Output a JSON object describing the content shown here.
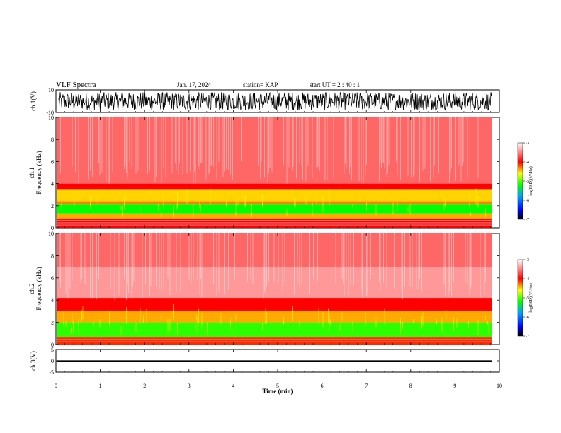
{
  "header": {
    "title": "VLF Spectra",
    "date": "Jan. 17, 2024",
    "station": "station= KAP",
    "start": "start  UT  =   2 : 40 : 1"
  },
  "chart_data": {
    "type": "heatmap",
    "x": {
      "label": "Time  (min)",
      "range": [
        0,
        10
      ],
      "ticks": [
        "0",
        "1",
        "2",
        "3",
        "4",
        "5",
        "6",
        "7",
        "8",
        "9",
        "10"
      ],
      "data_end": 9.83
    },
    "panels": [
      {
        "id": "ch1_waveform",
        "type": "line",
        "ylabel": "ch.1(V)",
        "ylim": [
          -10,
          10
        ],
        "yticks": [
          "10",
          "-10"
        ],
        "amplitude_range": [
          -8,
          8
        ]
      },
      {
        "id": "ch1_spectrogram",
        "type": "heatmap",
        "ylabel_top": "ch.1",
        "ylabel": "Frequency  (kHz)",
        "ylim": [
          0,
          10
        ],
        "yticks": [
          "0",
          "2",
          "4",
          "6",
          "8",
          "10"
        ],
        "bands": [
          {
            "from": 0.0,
            "to": 0.8,
            "level": -4.0
          },
          {
            "from": 0.8,
            "to": 1.3,
            "level": -4.4
          },
          {
            "from": 1.3,
            "to": 2.1,
            "level": -5.2
          },
          {
            "from": 2.1,
            "to": 2.4,
            "level": -4.3
          },
          {
            "from": 2.4,
            "to": 3.5,
            "level": -4.5
          },
          {
            "from": 3.5,
            "to": 4.0,
            "level": -4.0
          },
          {
            "from": 4.0,
            "to": 10.0,
            "level": -3.6
          }
        ]
      },
      {
        "id": "ch2_spectrogram",
        "type": "heatmap",
        "ylabel_top": "ch.2",
        "ylabel": "Frequency  (kHz)",
        "ylim": [
          0,
          10
        ],
        "yticks": [
          "0",
          "2",
          "4",
          "6",
          "8",
          "10"
        ],
        "bands": [
          {
            "from": 0.0,
            "to": 0.7,
            "level": -4.1
          },
          {
            "from": 0.7,
            "to": 2.0,
            "level": -5.1
          },
          {
            "from": 2.0,
            "to": 3.0,
            "level": -4.4
          },
          {
            "from": 3.0,
            "to": 4.2,
            "level": -4.0
          },
          {
            "from": 4.2,
            "to": 7.0,
            "level": -3.4
          },
          {
            "from": 7.0,
            "to": 10.0,
            "level": -3.6
          }
        ]
      },
      {
        "id": "ch3_waveform",
        "type": "line",
        "ylabel": "ch.3(V)",
        "ylim": [
          -5,
          5
        ],
        "yticks": [
          "5",
          "0",
          "-5"
        ],
        "baseline": -0.2,
        "amplitude_range": [
          -0.6,
          0.2
        ]
      }
    ],
    "colorbar": {
      "label": "log(PSD)(V²/Hz)",
      "range": [
        -7,
        -3
      ],
      "ticks": [
        "-3",
        "-4",
        "-5",
        "-6",
        "-7"
      ],
      "colors": [
        "#000000",
        "#0000ff",
        "#00a0ff",
        "#00ff00",
        "#ffff00",
        "#ff0000",
        "#ffffff"
      ]
    }
  }
}
